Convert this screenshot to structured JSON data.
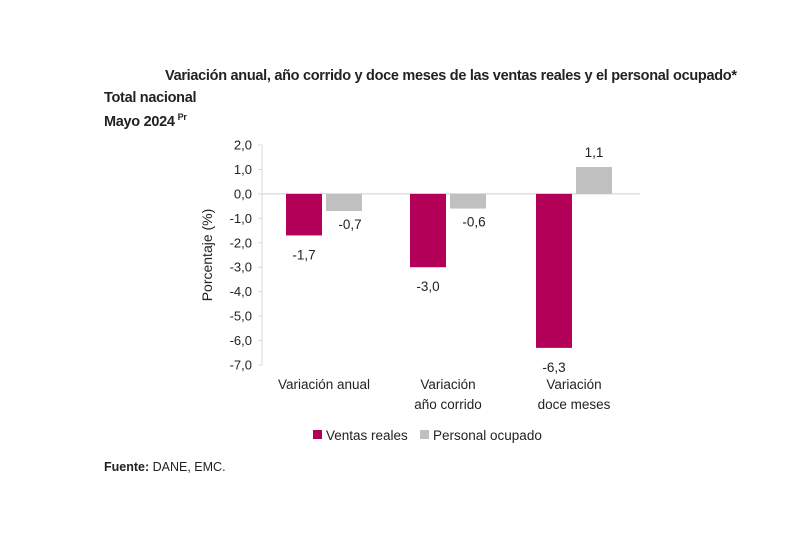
{
  "chart_data": {
    "type": "bar",
    "title": "Variación anual, año corrido y doce meses de las ventas reales y el personal ocupado*",
    "subtitle_lines": [
      "Total nacional",
      "Mayo 2024"
    ],
    "subtitle_superscript": "Pr",
    "xlabel": "",
    "ylabel": "Porcentaje (%)",
    "ylim": [
      -7.0,
      2.0
    ],
    "yticks": [
      "2,0",
      "1,0",
      "0,0",
      "-1,0",
      "-2,0",
      "-3,0",
      "-4,0",
      "-5,0",
      "-6,0",
      "-7,0"
    ],
    "ytick_values": [
      2,
      1,
      0,
      -1,
      -2,
      -3,
      -4,
      -5,
      -6,
      -7
    ],
    "grid": false,
    "legend_position": "bottom",
    "categories": [
      [
        "Variación anual"
      ],
      [
        "Variación",
        "año corrido"
      ],
      [
        "Variación",
        "doce meses"
      ]
    ],
    "series": [
      {
        "name": "Ventas reales",
        "color": "#B5005A",
        "values": [
          -1.7,
          -3.0,
          -6.3
        ],
        "labels": [
          "-1,7",
          "-3,0",
          "-6,3"
        ]
      },
      {
        "name": "Personal ocupado",
        "color": "#C0C0C0",
        "values": [
          -0.7,
          -0.6,
          1.1
        ],
        "labels": [
          "-0,7",
          "-0,6",
          "1,1"
        ]
      }
    ]
  },
  "source": {
    "label": "Fuente:",
    "text": " DANE, EMC."
  }
}
